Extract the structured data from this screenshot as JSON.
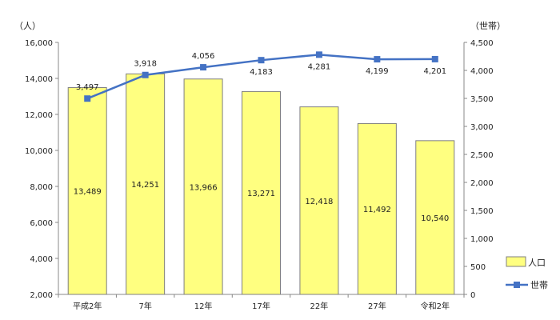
{
  "chart_data": {
    "type": "bar",
    "categories": [
      "平成2年",
      "7年",
      "12年",
      "17年",
      "22年",
      "27年",
      "令和2年"
    ],
    "series": [
      {
        "name": "人口",
        "type": "bar",
        "axis": "left",
        "color": "#FFFF80",
        "border_color": "#7f7f7f",
        "values": [
          13489,
          14251,
          13966,
          13271,
          12418,
          11492,
          10540
        ]
      },
      {
        "name": "世帯",
        "type": "line",
        "axis": "right",
        "color": "#4472C4",
        "marker": "square",
        "values": [
          3497,
          3918,
          4056,
          4183,
          4281,
          4199,
          4201
        ]
      }
    ],
    "y_left": {
      "unit_label": "（人）",
      "ylim": [
        2000,
        16000
      ],
      "ticks": [
        "2,000",
        "4,000",
        "6,000",
        "8,000",
        "10,000",
        "12,000",
        "14,000",
        "16,000"
      ]
    },
    "y_right": {
      "unit_label": "（世帯）",
      "ylim": [
        0,
        4500
      ],
      "ticks": [
        "0",
        "500",
        "1,000",
        "1,500",
        "2,000",
        "2,500",
        "3,000",
        "3,500",
        "4,000",
        "4,500"
      ]
    },
    "bar_labels": [
      "13,489",
      "14,251",
      "13,966",
      "13,271",
      "12,418",
      "11,492",
      "10,540"
    ],
    "line_labels": [
      "3,497",
      "3,918",
      "4,056",
      "4,183",
      "4,281",
      "4,199",
      "4,201"
    ],
    "legend": {
      "position": "right",
      "items": [
        {
          "name": "人口",
          "kind": "bar-swatch"
        },
        {
          "name": "世帯",
          "kind": "line-marker"
        }
      ]
    },
    "grid": false
  }
}
